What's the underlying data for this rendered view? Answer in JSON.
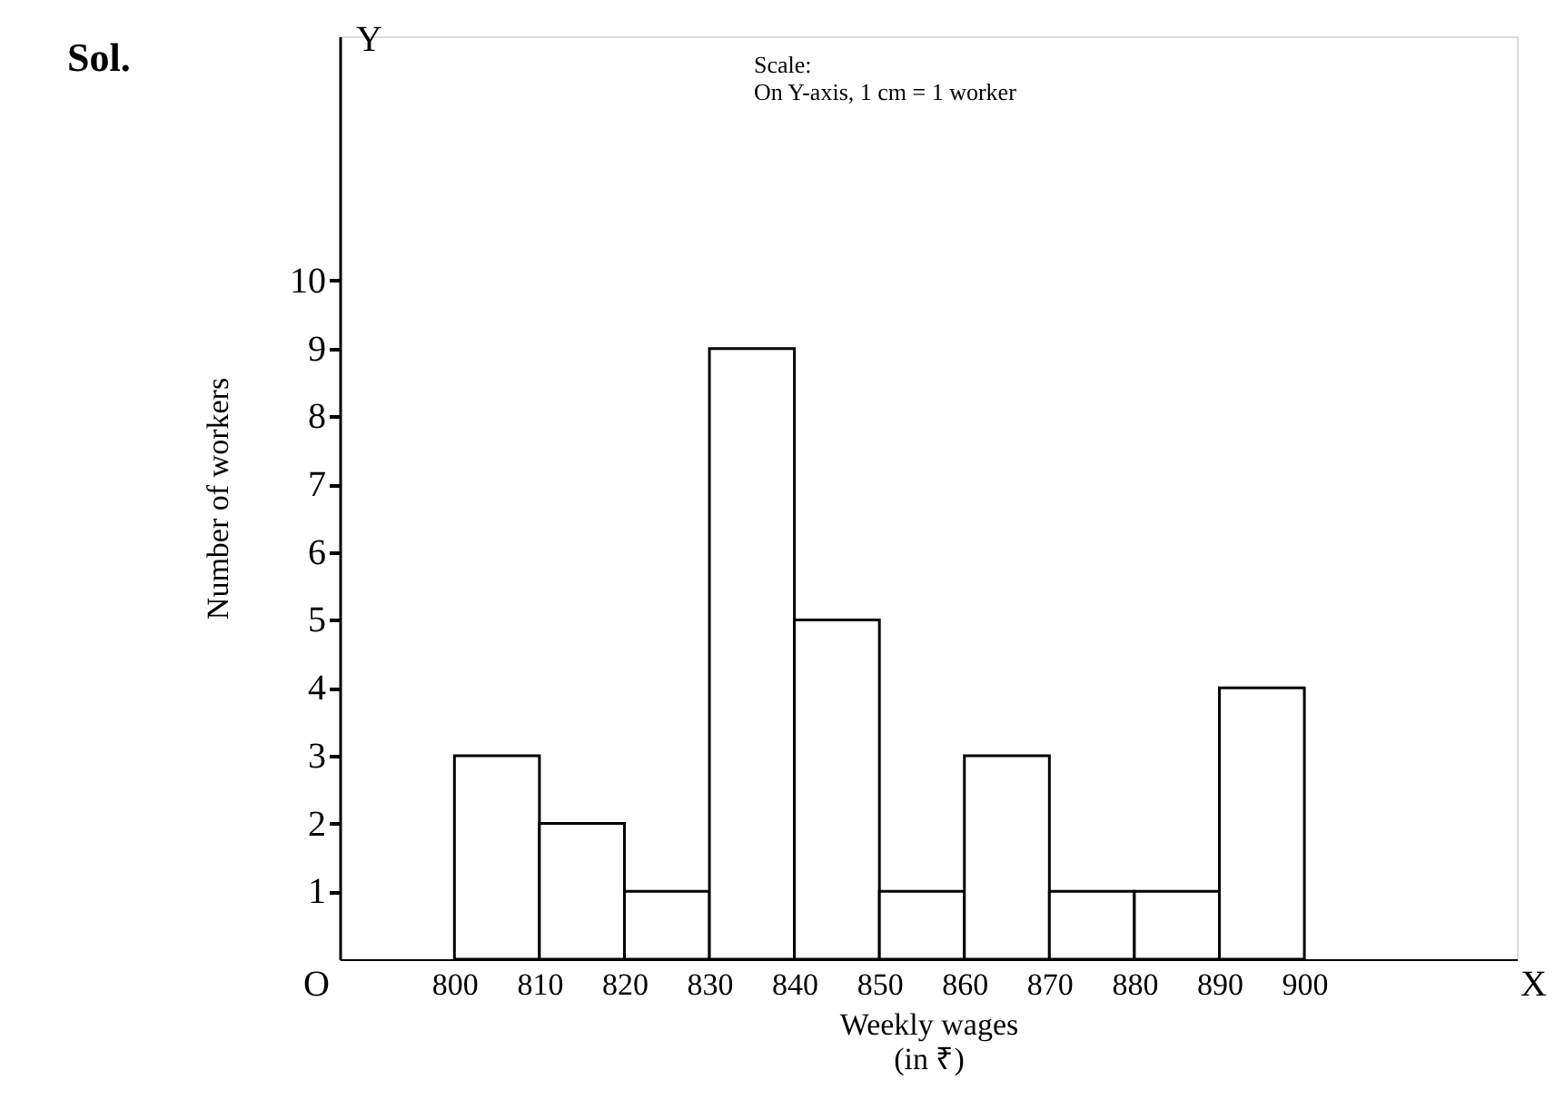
{
  "chart_data": {
    "type": "histogram",
    "bins": [
      800,
      810,
      820,
      830,
      840,
      850,
      860,
      870,
      880,
      890,
      900
    ],
    "values": [
      3,
      2,
      1,
      9,
      5,
      1,
      3,
      1,
      1,
      4
    ],
    "color": "#ffffff",
    "xlabel": "Weekly wages\n(in ₹)",
    "ylabel": "Number of workers",
    "xlim": [
      786.5,
      925
    ],
    "ylim": [
      0,
      13.6
    ],
    "xticks": [
      800,
      810,
      820,
      830,
      840,
      850,
      860,
      870,
      880,
      890,
      900
    ],
    "yticks": [
      1,
      2,
      3,
      4,
      5,
      6,
      7,
      8,
      9,
      10
    ],
    "grid": false,
    "annotations": [
      "Sol.",
      "Scale:\nOn Y-axis, 1 cm = 1 worker",
      "Y",
      "X",
      "O"
    ]
  }
}
